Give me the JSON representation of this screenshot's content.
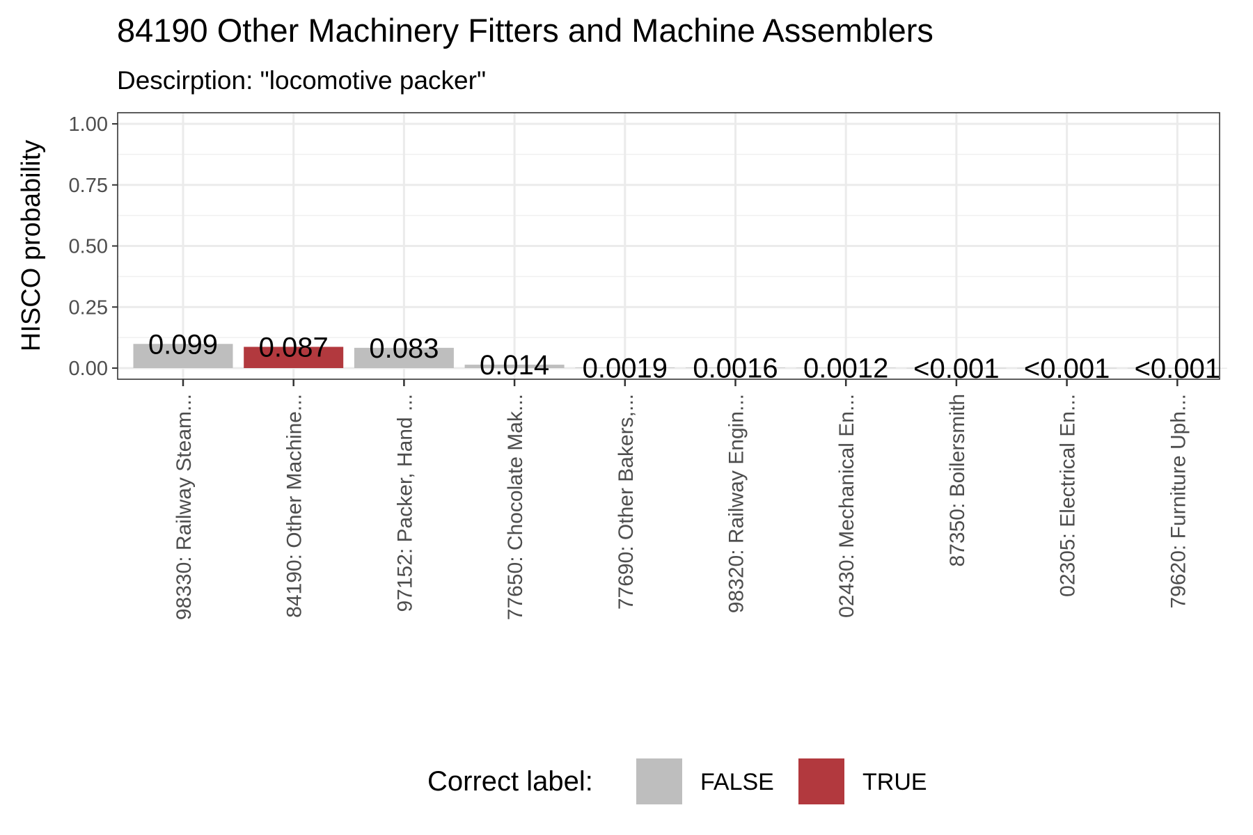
{
  "chart_data": {
    "type": "bar",
    "title": "84190 Other Machinery Fitters and Machine Assemblers",
    "subtitle": "Descirption: \"locomotive packer\"",
    "ylabel": "HISCO probability",
    "xlabel": "",
    "ylim": [
      0,
      1.05
    ],
    "yticks": [
      "0.00",
      "0.25",
      "0.50",
      "0.75",
      "1.00"
    ],
    "ytick_values": [
      0,
      0.25,
      0.5,
      0.75,
      1.0
    ],
    "categories": [
      "98330: Railway Steam...",
      "84190: Other Machine...",
      "97152: Packer, Hand ...",
      "77650: Chocolate Mak...",
      "77690: Other Bakers,...",
      "98320: Railway Engin...",
      "02430: Mechanical En...",
      "87350: Boilersmith",
      "02305: Electrical En...",
      "79620: Furniture Uph..."
    ],
    "values": [
      0.099,
      0.087,
      0.083,
      0.014,
      0.0019,
      0.0016,
      0.0012,
      0.0005,
      0.0005,
      0.0005
    ],
    "value_labels": [
      "0.099",
      "0.087",
      "0.083",
      "0.014",
      "0.0019",
      "0.0016",
      "0.0012",
      "<0.001",
      "<0.001",
      "<0.001"
    ],
    "correct": [
      false,
      true,
      false,
      false,
      false,
      false,
      false,
      false,
      false,
      false
    ],
    "grid": true,
    "legend": {
      "title": "Correct label:",
      "position": "bottom",
      "entries": [
        {
          "label": "FALSE",
          "color": "#bebebe"
        },
        {
          "label": "TRUE",
          "color": "#b2393e"
        }
      ]
    },
    "colors": {
      "FALSE": "#bebebe",
      "TRUE": "#b2393e"
    }
  }
}
